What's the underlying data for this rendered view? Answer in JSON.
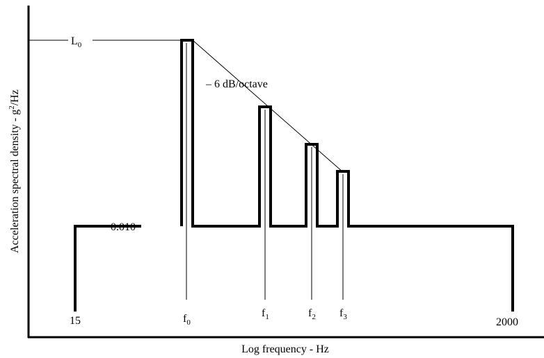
{
  "chart_data": {
    "type": "line",
    "xlabel": "Log frequency - Hz",
    "ylabel_prefix": "Acceleration spectral density - g",
    "ylabel_sup": "2",
    "ylabel_suffix": "/Hz",
    "x_scale": "log",
    "x_range_hz": [
      15,
      2000
    ],
    "baseline_label": "0.010",
    "baseline_level": 0.01,
    "peak_level_label": {
      "main": "L",
      "sub": "0"
    },
    "slope_label": "– 6 dB/octave",
    "tick_labels": [
      {
        "main": "15",
        "sub": ""
      },
      {
        "main": "f",
        "sub": "0"
      },
      {
        "main": "f",
        "sub": "1"
      },
      {
        "main": "f",
        "sub": "2"
      },
      {
        "main": "f",
        "sub": "3"
      },
      {
        "main": "2000",
        "sub": ""
      }
    ],
    "peaks": [
      {
        "name": "f0",
        "relative_level_db": 0
      },
      {
        "name": "f1",
        "relative_level_db": -6
      },
      {
        "name": "f2",
        "relative_level_db": -9.5
      },
      {
        "name": "f3",
        "relative_level_db": -12
      }
    ],
    "grid": false,
    "legend": "none"
  }
}
